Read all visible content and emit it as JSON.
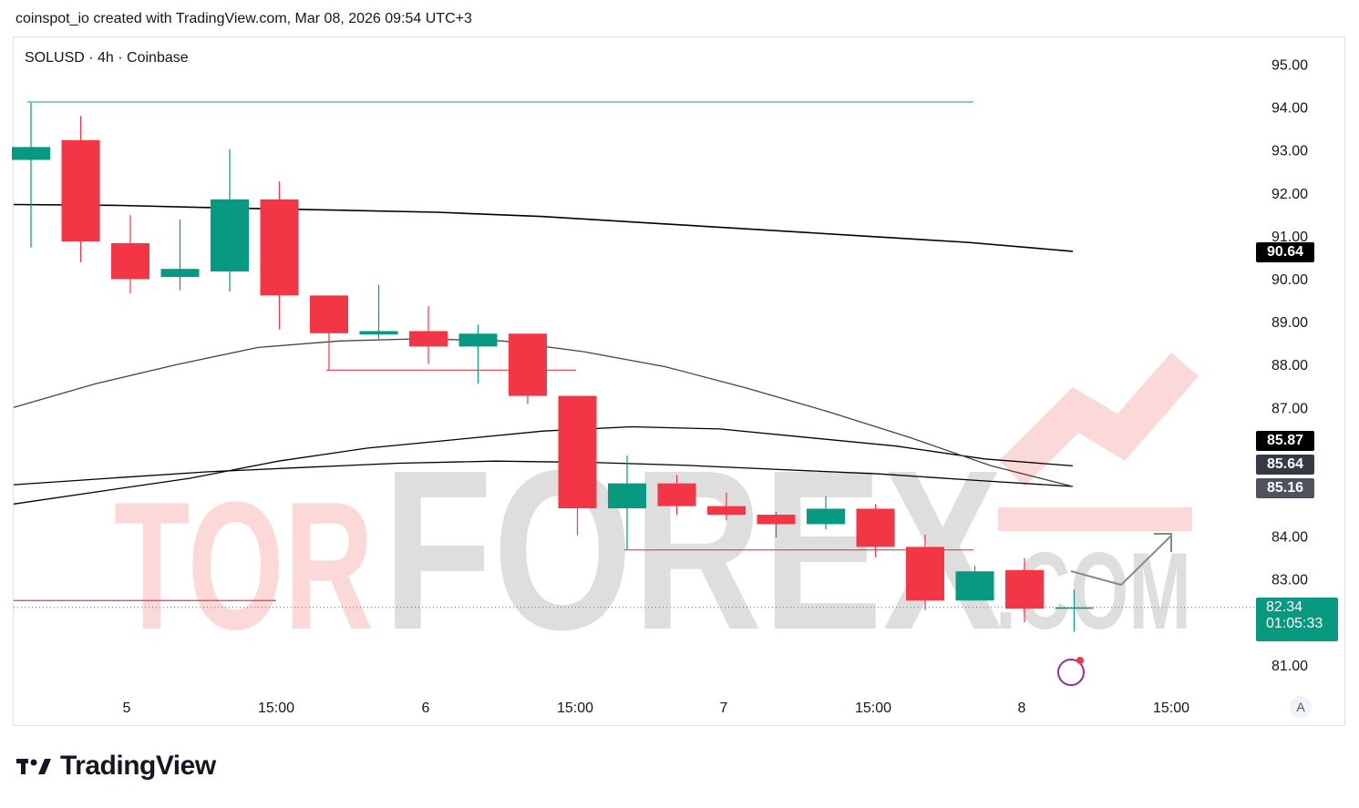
{
  "header": {
    "attribution": "coinspot_io created with TradingView.com, Mar 08, 2026 09:54 UTC+3"
  },
  "symbol_line": "SOLUSD · 4h · Coinbase",
  "watermark": {
    "left": "TOR",
    "right": "FOREX",
    "suffix": ".COM"
  },
  "footer": {
    "brand": "TradingView"
  },
  "auto_button": "A",
  "price_tags": {
    "ma_long": {
      "label": "90.64",
      "color": "#000000"
    },
    "ma_mid": {
      "label": "85.87",
      "color": "#000000"
    },
    "ma_a": {
      "label": "85.64",
      "color": "#363a45"
    },
    "ma_b": {
      "label": "85.16",
      "color": "#50535e"
    }
  },
  "current": {
    "price": "82.34",
    "countdown": "01:05:33",
    "color": "#089981"
  },
  "colors": {
    "up": "#089981",
    "down": "#f23645",
    "level": "#f23645",
    "top_level": "#26a69a",
    "ma": "#000000",
    "ma_thin": "#444444"
  },
  "chart_data": {
    "type": "candlestick",
    "symbol": "SOLUSD",
    "interval": "4h",
    "exchange": "Coinbase",
    "y_ticks": [
      "95.00",
      "94.00",
      "93.00",
      "92.00",
      "91.00",
      "90.00",
      "89.00",
      "88.00",
      "87.00",
      "84.00",
      "83.00",
      "81.00"
    ],
    "y_tick_values": [
      95,
      94,
      93,
      92,
      91,
      90,
      89,
      88,
      87,
      84,
      83,
      81
    ],
    "x_ticks": [
      "5",
      "15:00",
      "6",
      "15:00",
      "7",
      "15:00",
      "8",
      "15:00"
    ],
    "ylim": [
      80.5,
      96
    ],
    "candles": [
      {
        "t": "Mar 4 23:00",
        "o": 92.77,
        "h": 94.1,
        "l": 90.73,
        "c": 93.07
      },
      {
        "t": "Mar 5 03:00",
        "o": 93.23,
        "h": 93.8,
        "l": 90.38,
        "c": 90.87
      },
      {
        "t": "Mar 5 07:00",
        "o": 90.83,
        "h": 91.48,
        "l": 89.66,
        "c": 89.99
      },
      {
        "t": "Mar 5 11:00",
        "o": 90.04,
        "h": 91.38,
        "l": 89.73,
        "c": 90.23
      },
      {
        "t": "Mar 5 15:00",
        "o": 90.17,
        "h": 93.02,
        "l": 89.7,
        "c": 91.85
      },
      {
        "t": "Mar 5 19:00",
        "o": 91.85,
        "h": 92.27,
        "l": 88.82,
        "c": 89.61
      },
      {
        "t": "Mar 5 23:00",
        "o": 89.61,
        "h": 89.61,
        "l": 87.87,
        "c": 88.73
      },
      {
        "t": "Mar 6 03:00",
        "o": 88.7,
        "h": 89.86,
        "l": 88.6,
        "c": 88.78
      },
      {
        "t": "Mar 6 07:00",
        "o": 88.78,
        "h": 89.36,
        "l": 88.02,
        "c": 88.42
      },
      {
        "t": "Mar 6 11:00",
        "o": 88.42,
        "h": 88.93,
        "l": 87.55,
        "c": 88.72
      },
      {
        "t": "Mar 6 15:00",
        "o": 88.72,
        "h": 88.72,
        "l": 87.08,
        "c": 87.27
      },
      {
        "t": "Mar 6 19:00",
        "o": 87.27,
        "h": 87.27,
        "l": 84.02,
        "c": 84.65
      },
      {
        "t": "Mar 6 23:00",
        "o": 84.65,
        "h": 85.88,
        "l": 83.68,
        "c": 85.23
      },
      {
        "t": "Mar 7 03:00",
        "o": 85.23,
        "h": 85.43,
        "l": 84.49,
        "c": 84.7
      },
      {
        "t": "Mar 7 07:00",
        "o": 84.7,
        "h": 85.02,
        "l": 84.37,
        "c": 84.5
      },
      {
        "t": "Mar 7 11:00",
        "o": 84.5,
        "h": 84.57,
        "l": 83.97,
        "c": 84.28
      },
      {
        "t": "Mar 7 15:00",
        "o": 84.28,
        "h": 84.93,
        "l": 84.16,
        "c": 84.64
      },
      {
        "t": "Mar 7 19:00",
        "o": 84.64,
        "h": 84.75,
        "l": 83.51,
        "c": 83.75
      },
      {
        "t": "Mar 7 23:00",
        "o": 83.75,
        "h": 84.03,
        "l": 82.28,
        "c": 82.5
      },
      {
        "t": "Mar 8 03:00",
        "o": 82.5,
        "h": 83.31,
        "l": 82.5,
        "c": 83.18
      },
      {
        "t": "Mar 8 07:00",
        "o": 83.21,
        "h": 83.49,
        "l": 81.99,
        "c": 82.31
      },
      {
        "t": "Mar 8 11:00",
        "o": 82.34,
        "h": 82.75,
        "l": 81.77,
        "c": 82.34
      }
    ],
    "moving_averages": [
      {
        "points": [
          91.73,
          91.71,
          91.65,
          91.6,
          91.55,
          91.45,
          91.3,
          91.15,
          91.0,
          90.85,
          90.64
        ]
      },
      {
        "points": [
          85.2,
          85.35,
          85.5,
          85.6,
          85.7,
          85.75,
          85.72,
          85.65,
          85.55,
          85.45,
          85.3,
          85.16
        ]
      },
      {
        "points": [
          84.75,
          85.05,
          85.35,
          85.75,
          86.05,
          86.25,
          86.45,
          86.55,
          86.5,
          86.3,
          86.1,
          85.8,
          85.64
        ]
      },
      {
        "points": [
          87.0,
          87.55,
          88.0,
          88.4,
          88.55,
          88.6,
          88.55,
          88.3,
          87.95,
          87.45,
          86.9,
          86.3,
          85.64,
          85.16
        ]
      }
    ],
    "levels": [
      {
        "price": 94.12,
        "color": "#26a69a"
      },
      {
        "price": 87.87,
        "color": "#f23645"
      },
      {
        "price": 83.68,
        "color": "#f23645"
      },
      {
        "price": 82.5,
        "color": "#f23645"
      }
    ]
  }
}
